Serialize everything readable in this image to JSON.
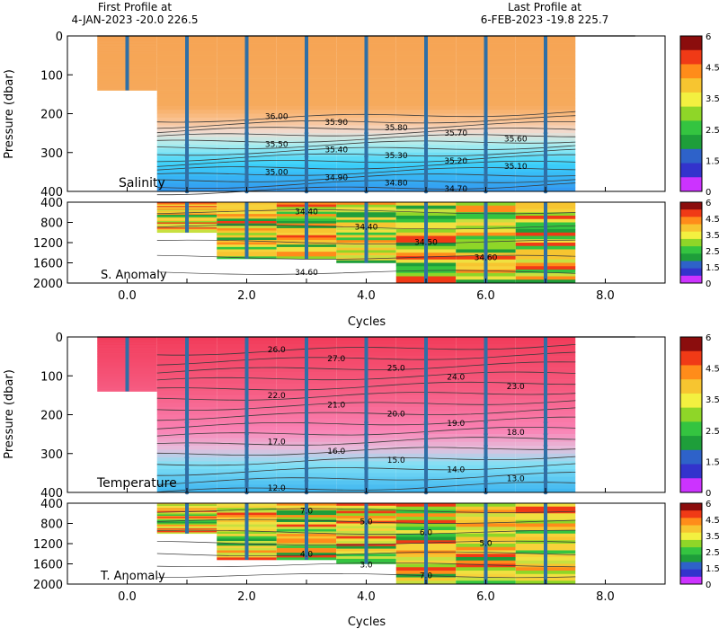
{
  "header": {
    "first_line1": "First Profile at",
    "first_line2": "4-JAN-2023   -20.0  226.5",
    "last_line1": "Last Profile at",
    "last_line2": "6-FEB-2023   -19.8  225.7"
  },
  "colors": {
    "profile_line": "#2f6fa6",
    "scale": [
      "#cc33ff",
      "#3333cc",
      "#2e62c9",
      "#1e9e3a",
      "#34c440",
      "#8fd628",
      "#f3f040",
      "#f7c530",
      "#ff8c1a",
      "#f03a16",
      "#8b0d0d"
    ]
  },
  "chart_data": [
    {
      "type": "heatmap",
      "panel": "salinity",
      "label": "Salinity",
      "ylabel": "Pressure (dbar)",
      "ylim": [
        0,
        400
      ],
      "yticks": [
        "0",
        "100",
        "200",
        "300",
        "400"
      ],
      "xlim": [
        -1,
        9
      ],
      "profile_cycles": [
        0,
        1,
        2,
        3,
        4,
        5,
        6,
        7
      ],
      "contour_labels": [
        "36.00",
        "35.90",
        "35.80",
        "35.70",
        "35.60",
        "35.50",
        "35.40",
        "35.30",
        "35.20",
        "35.10",
        "35.00",
        "34.90",
        "34.80",
        "34.70"
      ],
      "colorbar_ticks": [
        "6",
        "4.5",
        "3.5",
        "2.5",
        "1.5",
        "0"
      ]
    },
    {
      "type": "heatmap",
      "panel": "salinity-anomaly",
      "label": "S. Anomaly",
      "ylim": [
        400,
        2000
      ],
      "yticks": [
        "400",
        "800",
        "1200",
        "1600",
        "2000"
      ],
      "contour_labels": [
        "34.40",
        "34.40",
        "34.50",
        "34.60",
        "34.60"
      ],
      "colorbar_ticks": [
        "6",
        "4.5",
        "3.5",
        "2.5",
        "1.5",
        "0"
      ]
    },
    {
      "type": "heatmap",
      "panel": "temperature",
      "label": "Temperature",
      "ylabel": "Pressure (dbar)",
      "ylim": [
        0,
        400
      ],
      "yticks": [
        "0",
        "100",
        "200",
        "300",
        "400"
      ],
      "contour_labels": [
        "26.0",
        "27.0",
        "25.0",
        "24.0",
        "23.0",
        "22.0",
        "21.0",
        "20.0",
        "19.0",
        "18.0",
        "17.0",
        "16.0",
        "15.0",
        "14.0",
        "13.0",
        "12.0"
      ],
      "colorbar_ticks": [
        "6",
        "4.5",
        "3.5",
        "2.5",
        "1.5",
        "0"
      ]
    },
    {
      "type": "heatmap",
      "panel": "temperature-anomaly",
      "label": "T. Anomaly",
      "xlabel": "Cycles",
      "ylim": [
        400,
        2000
      ],
      "yticks": [
        "400",
        "800",
        "1200",
        "1600",
        "2000"
      ],
      "xticks": [
        "0.0",
        "2.0",
        "4.0",
        "6.0",
        "8.0"
      ],
      "contour_labels": [
        "7.0",
        "5.0",
        "6.0",
        "5.0",
        "4.0",
        "3.0",
        "7.0"
      ],
      "colorbar_ticks": [
        "6",
        "4.5",
        "3.5",
        "2.5",
        "1.5",
        "0"
      ]
    }
  ],
  "x_axis": {
    "label": "Cycles",
    "ticks": [
      "0.0",
      "2.0",
      "4.0",
      "6.0",
      "8.0"
    ]
  }
}
